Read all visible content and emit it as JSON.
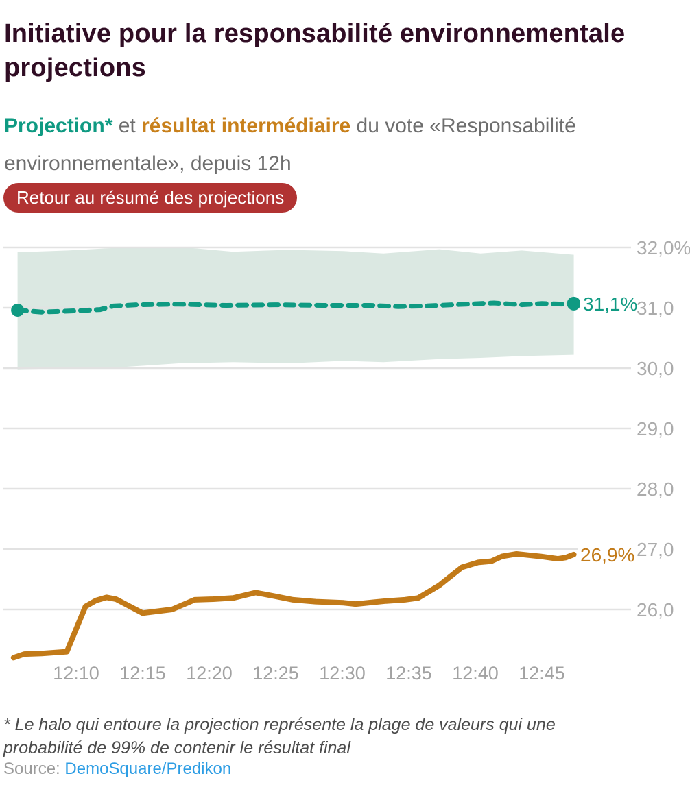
{
  "header": {
    "title": "Initiative pour la responsabilité environnementale projections",
    "subtitle": {
      "projection_label": "Projection*",
      "connector": " et ",
      "intermediate_label": "résultat intermédiaire",
      "rest": " du vote «Responsabilité environnementale», depuis 12h"
    },
    "back_button": "Retour au résumé des projections"
  },
  "colors": {
    "title": "#300d24",
    "projection_teal": "#0f9a82",
    "result_orange": "#c27a18",
    "subtitle_orange": "#c8801b",
    "band_fill": "#dbe8e2",
    "button_red": "#b13332",
    "gridline": "#e2e2e2",
    "axis_label": "#ababab",
    "source_link_blue": "#2d9de4"
  },
  "chart_data": {
    "type": "line",
    "x": {
      "unit": "time (hh:mm), minutes after 12:00",
      "tick_labels": [
        "12:10",
        "12:15",
        "12:20",
        "12:25",
        "12:30",
        "12:35",
        "12:40",
        "12:45"
      ],
      "tick_minutes": [
        10,
        15,
        20,
        25,
        30,
        35,
        40,
        45
      ],
      "range_minutes": [
        5.3,
        47.4
      ]
    },
    "y": {
      "unit": "percent",
      "range": [
        25.1,
        32.3
      ],
      "ticks": [
        {
          "label": "32,0%",
          "value": 32
        },
        {
          "label": "31,0",
          "value": 31
        },
        {
          "label": "30,0",
          "value": 30
        },
        {
          "label": "29,0",
          "value": 29
        },
        {
          "label": "28,0",
          "value": 28
        },
        {
          "label": "27,0",
          "value": 27
        },
        {
          "label": "26,0",
          "value": 26
        }
      ]
    },
    "series": [
      {
        "name": "Projection",
        "style": "dashed",
        "color": "#0f9a82",
        "end_label": "31,1%",
        "points": [
          [
            5.6,
            30.96
          ],
          [
            7.4,
            30.93
          ],
          [
            10.0,
            30.95
          ],
          [
            11.8,
            30.97
          ],
          [
            12.8,
            31.03
          ],
          [
            14.6,
            31.05
          ],
          [
            17.7,
            31.06
          ],
          [
            21.3,
            31.04
          ],
          [
            24.9,
            31.05
          ],
          [
            28.5,
            31.04
          ],
          [
            32.1,
            31.04
          ],
          [
            34.2,
            31.02
          ],
          [
            36.2,
            31.03
          ],
          [
            39.3,
            31.06
          ],
          [
            41.4,
            31.08
          ],
          [
            43.5,
            31.05
          ],
          [
            45.0,
            31.07
          ],
          [
            46.6,
            31.06
          ],
          [
            47.4,
            31.07
          ]
        ]
      },
      {
        "name": "Résultat intermédiaire",
        "style": "solid",
        "color": "#c27a18",
        "end_label": "26,9%",
        "points": [
          [
            5.3,
            25.2
          ],
          [
            6.1,
            25.26
          ],
          [
            7.4,
            25.27
          ],
          [
            9.3,
            25.3
          ],
          [
            10.7,
            26.05
          ],
          [
            11.5,
            26.15
          ],
          [
            12.3,
            26.2
          ],
          [
            13.0,
            26.17
          ],
          [
            15.0,
            25.94
          ],
          [
            16.1,
            25.97
          ],
          [
            17.2,
            26.0
          ],
          [
            18.9,
            26.16
          ],
          [
            20.3,
            26.17
          ],
          [
            21.8,
            26.19
          ],
          [
            23.5,
            26.28
          ],
          [
            24.9,
            26.22
          ],
          [
            26.3,
            26.16
          ],
          [
            28.0,
            26.13
          ],
          [
            30.1,
            26.11
          ],
          [
            31.0,
            26.09
          ],
          [
            32.4,
            26.12
          ],
          [
            33.3,
            26.14
          ],
          [
            34.7,
            26.16
          ],
          [
            35.7,
            26.19
          ],
          [
            37.3,
            26.4
          ],
          [
            39.0,
            26.7
          ],
          [
            40.2,
            26.78
          ],
          [
            41.2,
            26.8
          ],
          [
            42.0,
            26.88
          ],
          [
            43.1,
            26.92
          ],
          [
            44.0,
            26.9
          ],
          [
            44.9,
            26.88
          ],
          [
            46.2,
            26.84
          ],
          [
            46.8,
            26.86
          ],
          [
            47.4,
            26.91
          ]
        ]
      }
    ],
    "band": {
      "name": "Halo de probabilité 99%",
      "color": "#dbe8e2",
      "upper": [
        [
          5.6,
          31.92
        ],
        [
          9.4,
          31.95
        ],
        [
          13.6,
          32.0
        ],
        [
          17.7,
          32.01
        ],
        [
          21.8,
          31.93
        ],
        [
          25.9,
          31.96
        ],
        [
          30.1,
          31.94
        ],
        [
          33.1,
          31.9
        ],
        [
          37.3,
          31.97
        ],
        [
          40.4,
          31.9
        ],
        [
          43.5,
          31.95
        ],
        [
          47.4,
          31.88
        ]
      ],
      "lower": [
        [
          5.6,
          29.98
        ],
        [
          9.4,
          30.0
        ],
        [
          13.6,
          30.02
        ],
        [
          17.7,
          30.08
        ],
        [
          21.8,
          30.1
        ],
        [
          25.9,
          30.08
        ],
        [
          30.1,
          30.12
        ],
        [
          33.1,
          30.1
        ],
        [
          37.3,
          30.15
        ],
        [
          40.4,
          30.17
        ],
        [
          43.5,
          30.2
        ],
        [
          47.4,
          30.22
        ]
      ]
    },
    "legend_position": "none",
    "grid": "horizontal"
  },
  "footnote": "* Le halo qui entoure la projection représente la plage de valeurs qui une probabilité de 99% de contenir le résultat final",
  "source": {
    "label": "Source: ",
    "link": "DemoSquare/Predikon"
  }
}
